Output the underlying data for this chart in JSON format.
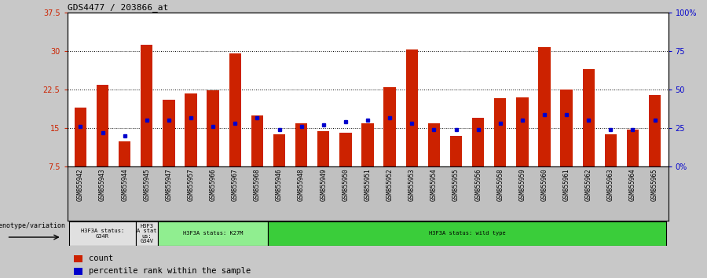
{
  "title": "GDS4477 / 203866_at",
  "samples": [
    "GSM855942",
    "GSM855943",
    "GSM855944",
    "GSM855945",
    "GSM855947",
    "GSM855957",
    "GSM855966",
    "GSM855967",
    "GSM855968",
    "GSM855946",
    "GSM855948",
    "GSM855949",
    "GSM855950",
    "GSM855951",
    "GSM855952",
    "GSM855953",
    "GSM855954",
    "GSM855955",
    "GSM855956",
    "GSM855958",
    "GSM855959",
    "GSM855960",
    "GSM855961",
    "GSM855962",
    "GSM855963",
    "GSM855964",
    "GSM855965"
  ],
  "counts": [
    19.0,
    23.5,
    12.5,
    31.2,
    20.5,
    21.8,
    22.3,
    29.5,
    17.5,
    13.8,
    16.0,
    14.5,
    14.2,
    16.0,
    23.0,
    30.3,
    16.0,
    13.5,
    17.0,
    20.8,
    21.0,
    30.8,
    22.5,
    26.5,
    13.8,
    14.8,
    21.5
  ],
  "percentile_ranks": [
    26,
    22,
    20,
    30,
    30,
    32,
    26,
    28,
    32,
    24,
    26,
    27,
    29,
    30,
    32,
    28,
    24,
    24,
    24,
    28,
    30,
    34,
    34,
    30,
    24,
    24,
    30
  ],
  "group_definitions": [
    {
      "start": 0,
      "end": 2,
      "label": "H3F3A status:\nG34R",
      "color": "#e0e0e0"
    },
    {
      "start": 3,
      "end": 3,
      "label": "H3F3\nA stat\nus:\nG34V",
      "color": "#e0e0e0"
    },
    {
      "start": 4,
      "end": 8,
      "label": "H3F3A status: K27M",
      "color": "#90ee90"
    },
    {
      "start": 9,
      "end": 26,
      "label": "H3F3A status: wild type",
      "color": "#3acd3a"
    }
  ],
  "ylim": [
    7.5,
    37.5
  ],
  "yticks": [
    7.5,
    15.0,
    22.5,
    30.0,
    37.5
  ],
  "ytick_labels": [
    "7.5",
    "15",
    "22.5",
    "30",
    "37.5"
  ],
  "y2ticks": [
    0,
    25,
    50,
    75,
    100
  ],
  "y2tick_labels": [
    "0%",
    "25",
    "50",
    "75",
    "100%"
  ],
  "bar_color": "#cc2200",
  "dot_color": "#0000cc",
  "fig_bg_color": "#c8c8c8",
  "plot_bg_color": "#ffffff",
  "xlabel_bg_color": "#c0c0c0",
  "axis_color_left": "#cc2200",
  "axis_color_right": "#0000cc",
  "gridline_yticks": [
    15.0,
    22.5,
    30.0
  ]
}
